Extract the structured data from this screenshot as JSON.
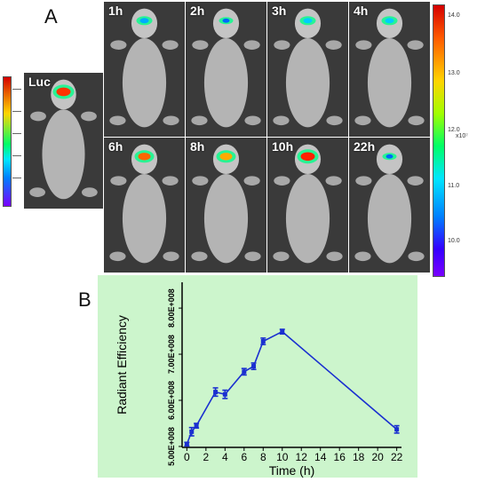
{
  "panel_a": {
    "letter": "A",
    "tiles": [
      {
        "label": "Luc"
      },
      {
        "label": "1h"
      },
      {
        "label": "2h"
      },
      {
        "label": "3h"
      },
      {
        "label": "4h"
      },
      {
        "label": "6h"
      },
      {
        "label": "8h"
      },
      {
        "label": "10h"
      },
      {
        "label": "22h"
      }
    ],
    "colorbar": {
      "ticks": [
        "14.0",
        "13.0",
        "12.0",
        "11.0",
        "10.0"
      ],
      "unit": "x10⁷",
      "colors": [
        "#d40000",
        "#ff5a00",
        "#ffd400",
        "#00ff66",
        "#00e6ff",
        "#0080ff",
        "#7a00ff"
      ]
    }
  },
  "panel_b": {
    "letter": "B",
    "background": "#ccf5cc",
    "line_color": "#1a2fd0"
  },
  "chart_data": {
    "type": "line",
    "xlabel": "Time (h)",
    "ylabel": "Radiant Efficiency",
    "xlim": [
      -0.5,
      22.5
    ],
    "ylim": [
      498000000,
      856000000
    ],
    "xticks": [
      0,
      2,
      4,
      6,
      8,
      10,
      12,
      14,
      16,
      18,
      20,
      22
    ],
    "yticks": [
      {
        "value": 500000000,
        "label": "5.00E+008"
      },
      {
        "value": 600000000,
        "label": "6.00E+008"
      },
      {
        "value": 700000000,
        "label": "7.00E+008"
      },
      {
        "value": 800000000,
        "label": "8.00E+008"
      }
    ],
    "series": [
      {
        "x": [
          0,
          0.5,
          1,
          3,
          4,
          6,
          7,
          8,
          10,
          22
        ],
        "values": [
          505000000,
          532000000,
          545000000,
          618000000,
          613000000,
          662000000,
          674000000,
          728000000,
          749000000,
          537000000
        ],
        "errors": [
          4000000,
          9000000,
          5000000,
          9000000,
          9000000,
          7000000,
          7000000,
          7000000,
          5000000,
          8000000
        ]
      }
    ]
  }
}
